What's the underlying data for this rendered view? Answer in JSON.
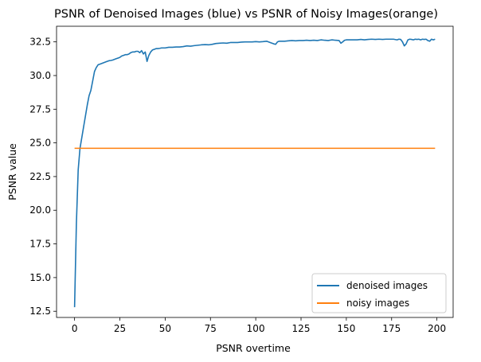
{
  "chart_data": {
    "type": "line",
    "title": "PSNR of Denoised Images (blue) vs PSNR of Noisy Images(orange)",
    "xlabel": "PSNR overtime",
    "ylabel": "PSNR value",
    "xlim": [
      -9.95,
      208.95
    ],
    "ylim": [
      12.04,
      33.66
    ],
    "xticks": [
      0,
      25,
      50,
      75,
      100,
      125,
      150,
      175,
      200
    ],
    "yticks": [
      12.5,
      15.0,
      17.5,
      20.0,
      22.5,
      25.0,
      27.5,
      30.0,
      32.5
    ],
    "ytick_labels": [
      "12.5",
      "15.0",
      "17.5",
      "20.0",
      "22.5",
      "25.0",
      "27.5",
      "30.0",
      "32.5"
    ],
    "grid": false,
    "legend_position": "lower-right",
    "series": [
      {
        "name": "denoised images",
        "color": "#1f77b4",
        "x": [
          0,
          1,
          2,
          3,
          4,
          5,
          6,
          7,
          8,
          9,
          10,
          11,
          12,
          13,
          14,
          15,
          16,
          17,
          18,
          19,
          20,
          21,
          22,
          23,
          24,
          25,
          26,
          27,
          28,
          29,
          30,
          31,
          32,
          33,
          34,
          35,
          36,
          37,
          38,
          39,
          40,
          41,
          42,
          43,
          44,
          45,
          46,
          47,
          48,
          49,
          50,
          52,
          54,
          56,
          58,
          60,
          62,
          64,
          66,
          68,
          70,
          72,
          74,
          76,
          78,
          80,
          82,
          84,
          86,
          88,
          90,
          92,
          94,
          96,
          98,
          100,
          102,
          104,
          106,
          108,
          110,
          111,
          112,
          113,
          114,
          116,
          118,
          120,
          122,
          124,
          126,
          128,
          130,
          132,
          134,
          136,
          138,
          140,
          142,
          144,
          146,
          147,
          148,
          149,
          150,
          152,
          154,
          156,
          158,
          160,
          162,
          164,
          166,
          168,
          170,
          172,
          174,
          176,
          178,
          179,
          180,
          181,
          182,
          183,
          184,
          185,
          186,
          187,
          188,
          189,
          190,
          191,
          192,
          193,
          194,
          195,
          196,
          197,
          198,
          199
        ],
        "values": [
          12.8,
          19.0,
          23.0,
          24.6,
          25.4,
          26.2,
          27.0,
          27.8,
          28.5,
          28.9,
          29.6,
          30.3,
          30.6,
          30.8,
          30.85,
          30.9,
          30.95,
          31.0,
          31.05,
          31.1,
          31.12,
          31.15,
          31.2,
          31.25,
          31.3,
          31.35,
          31.45,
          31.5,
          31.55,
          31.55,
          31.6,
          31.7,
          31.75,
          31.75,
          31.8,
          31.8,
          31.7,
          31.85,
          31.6,
          31.75,
          31.05,
          31.5,
          31.75,
          31.9,
          31.95,
          32.0,
          32.0,
          32.02,
          32.05,
          32.05,
          32.05,
          32.1,
          32.1,
          32.12,
          32.12,
          32.15,
          32.2,
          32.18,
          32.22,
          32.25,
          32.28,
          32.3,
          32.28,
          32.32,
          32.38,
          32.4,
          32.42,
          32.4,
          32.45,
          32.45,
          32.45,
          32.48,
          32.5,
          32.5,
          32.5,
          32.52,
          32.5,
          32.52,
          32.55,
          32.45,
          32.35,
          32.32,
          32.5,
          32.55,
          32.55,
          32.55,
          32.58,
          32.6,
          32.58,
          32.6,
          32.6,
          32.62,
          32.6,
          32.62,
          32.6,
          32.65,
          32.62,
          32.6,
          32.65,
          32.62,
          32.6,
          32.4,
          32.5,
          32.62,
          32.65,
          32.65,
          32.65,
          32.65,
          32.68,
          32.65,
          32.68,
          32.7,
          32.68,
          32.7,
          32.68,
          32.7,
          32.7,
          32.7,
          32.65,
          32.7,
          32.68,
          32.5,
          32.2,
          32.35,
          32.65,
          32.7,
          32.68,
          32.65,
          32.7,
          32.68,
          32.7,
          32.65,
          32.7,
          32.68,
          32.7,
          32.6,
          32.55,
          32.7,
          32.65,
          32.7
        ]
      },
      {
        "name": "noisy images",
        "color": "#ff7f0e",
        "x": [
          0,
          199
        ],
        "values": [
          24.6,
          24.6
        ]
      }
    ]
  }
}
